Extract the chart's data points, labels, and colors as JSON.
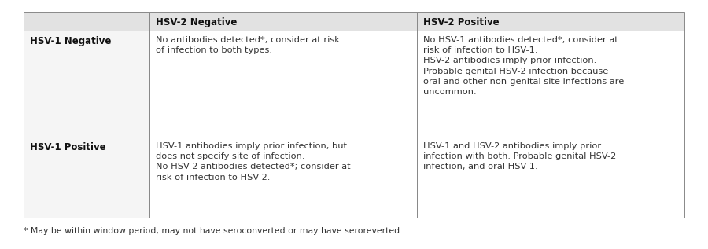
{
  "figsize": [
    9.0,
    3.17
  ],
  "dpi": 100,
  "background_color": "#ffffff",
  "header_bg": "#e2e2e2",
  "row1_bg": "#ffffff",
  "col0_bg": "#f5f5f5",
  "border_color": "#888888",
  "text_color": "#333333",
  "header_text_color": "#111111",
  "headers": [
    "",
    "HSV-2 Negative",
    "HSV-2 Positive"
  ],
  "row_labels": [
    "HSV-1 Negative",
    "HSV-1 Positive"
  ],
  "cell_texts": [
    [
      "No antibodies detected*; consider at risk\nof infection to both types.",
      "No HSV-1 antibodies detected*; consider at\nrisk of infection to HSV-1.\nHSV-2 antibodies imply prior infection.\nProbable genital HSV-2 infection because\noral and other non-genital site infections are\nuncommon."
    ],
    [
      "HSV-1 antibodies imply prior infection, but\ndoes not specify site of infection.\nNo HSV-2 antibodies detected*; consider at\nrisk of infection to HSV-2.",
      "HSV-1 and HSV-2 antibodies imply prior\ninfection with both. Probable genital HSV-2\ninfection, and oral HSV-1."
    ]
  ],
  "footnote": "* May be within window period, may not have seroconverted or may have seroreverted.",
  "header_fontsize": 8.5,
  "label_fontsize": 8.5,
  "cell_fontsize": 8.2,
  "footnote_fontsize": 7.8,
  "lw": 0.7
}
